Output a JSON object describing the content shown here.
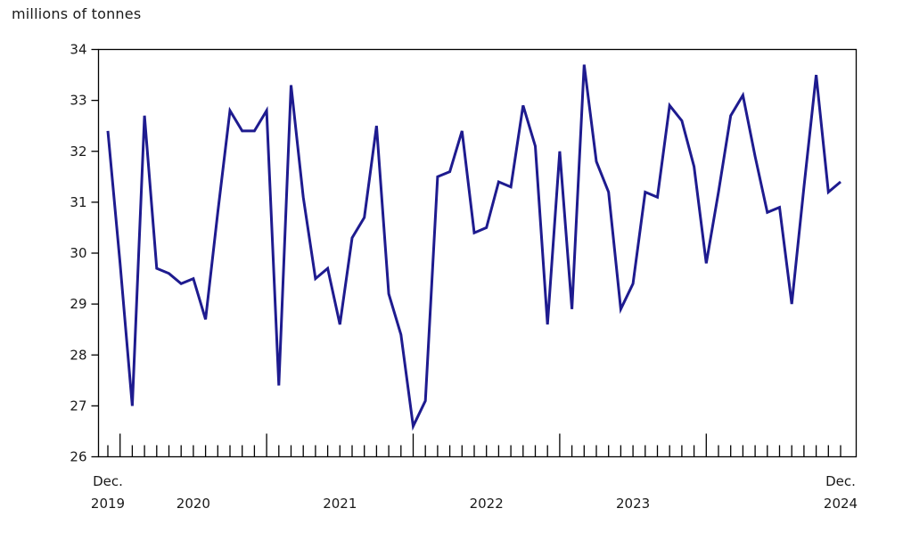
{
  "page": {
    "title": "millions of tonnes"
  },
  "chart_data": {
    "type": "line",
    "title": "millions of tonnes",
    "ylabel": "millions of tonnes",
    "ylim": [
      26,
      34
    ],
    "yticks": [
      26,
      27,
      28,
      29,
      30,
      31,
      32,
      33,
      34
    ],
    "grid": false,
    "legend_position": "none",
    "line_color": "#1e1b8f",
    "axis_color": "#000000",
    "text_color": "#1a1a1a",
    "x_first_label": {
      "line1": "Dec.",
      "line2": "2019"
    },
    "x_last_label": {
      "line1": "Dec.",
      "line2": "2024"
    },
    "x_year_labels": [
      {
        "year": "2020",
        "month_index": 7
      },
      {
        "year": "2021",
        "month_index": 19
      },
      {
        "year": "2022",
        "month_index": 31
      },
      {
        "year": "2023",
        "month_index": 43
      }
    ],
    "january_indices": [
      1,
      13,
      25,
      37,
      49
    ],
    "months": [
      "2019-12",
      "2020-01",
      "2020-02",
      "2020-03",
      "2020-04",
      "2020-05",
      "2020-06",
      "2020-07",
      "2020-08",
      "2020-09",
      "2020-10",
      "2020-11",
      "2020-12",
      "2021-01",
      "2021-02",
      "2021-03",
      "2021-04",
      "2021-05",
      "2021-06",
      "2021-07",
      "2021-08",
      "2021-09",
      "2021-10",
      "2021-11",
      "2021-12",
      "2022-01",
      "2022-02",
      "2022-03",
      "2022-04",
      "2022-05",
      "2022-06",
      "2022-07",
      "2022-08",
      "2022-09",
      "2022-10",
      "2022-11",
      "2022-12",
      "2023-01",
      "2023-02",
      "2023-03",
      "2023-04",
      "2023-05",
      "2023-06",
      "2023-07",
      "2023-08",
      "2023-09",
      "2023-10",
      "2023-11",
      "2023-12",
      "2024-01",
      "2024-02",
      "2024-03",
      "2024-04",
      "2024-05",
      "2024-06",
      "2024-07",
      "2024-08",
      "2024-09",
      "2024-10",
      "2024-11",
      "2024-12"
    ],
    "values": [
      32.4,
      29.8,
      27.0,
      32.7,
      29.7,
      29.6,
      29.4,
      29.5,
      28.7,
      30.8,
      32.8,
      32.4,
      32.4,
      32.8,
      27.4,
      33.3,
      31.1,
      29.5,
      29.7,
      28.6,
      30.3,
      30.7,
      32.5,
      29.2,
      28.4,
      26.6,
      27.1,
      31.5,
      31.6,
      32.4,
      30.4,
      30.5,
      31.4,
      31.3,
      32.9,
      32.1,
      28.6,
      32.0,
      28.9,
      33.7,
      31.8,
      31.2,
      28.9,
      29.4,
      31.2,
      31.1,
      32.9,
      32.6,
      31.7,
      29.8,
      31.2,
      32.7,
      33.1,
      31.9,
      30.8,
      30.9,
      29.0,
      31.3,
      33.5,
      31.2,
      31.4
    ]
  }
}
